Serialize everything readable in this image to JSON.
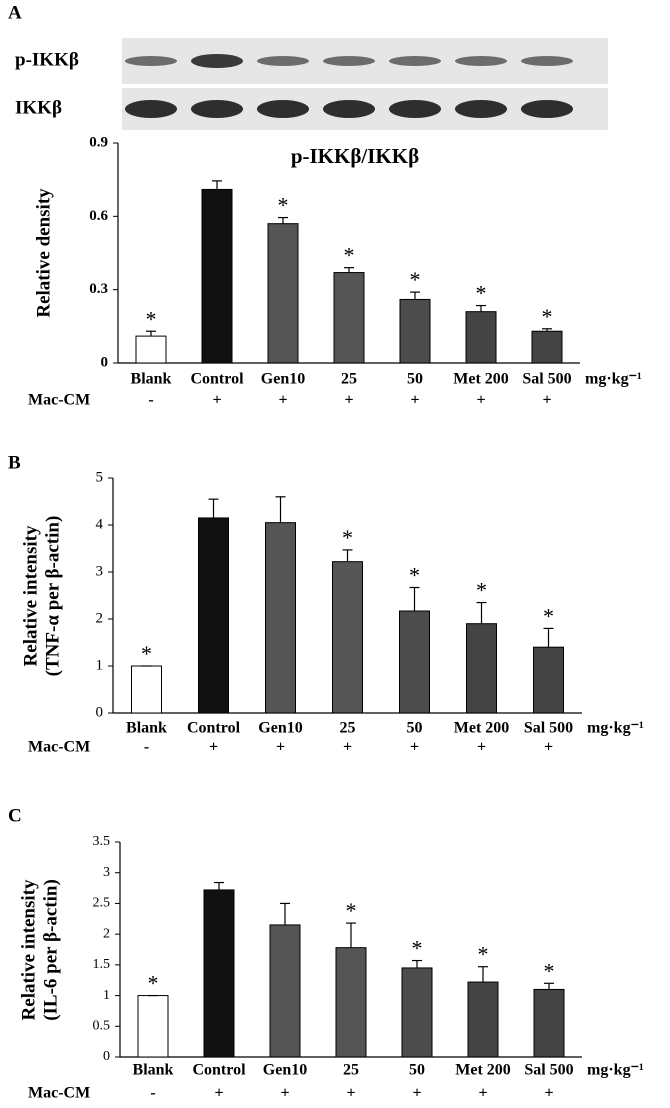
{
  "chart_data": [
    {
      "type": "bar",
      "panel": "A",
      "title": "p-IKKβ/IKKβ",
      "blots": [
        "p-IKKβ",
        "IKKβ"
      ],
      "ylabel": [
        "Relative density"
      ],
      "categories": [
        "Blank",
        "Control",
        "Gen10",
        "25",
        "50",
        "Met 200",
        "Sal 500"
      ],
      "unit": "mg·kg⁻¹",
      "values": [
        0.11,
        0.71,
        0.57,
        0.37,
        0.26,
        0.21,
        0.13
      ],
      "errors": [
        0.02,
        0.035,
        0.025,
        0.02,
        0.03,
        0.025,
        0.01
      ],
      "colors": [
        "#ffffff",
        "#111111",
        "#555555",
        "#555555",
        "#4c4c4c",
        "#444444",
        "#444444"
      ],
      "significance": [
        "*",
        null,
        "*",
        "*",
        "*",
        "*",
        "*"
      ],
      "treatment_label": "Mac-CM",
      "treatment": [
        "-",
        "+",
        "+",
        "+",
        "+",
        "+",
        "+"
      ],
      "ylim": [
        0,
        0.9
      ],
      "yticks": [
        0,
        0.3,
        0.6,
        0.9
      ]
    },
    {
      "type": "bar",
      "panel": "B",
      "ylabel": [
        "Relative intensity",
        "(TNF-α per β-actin)"
      ],
      "categories": [
        "Blank",
        "Control",
        "Gen10",
        "25",
        "50",
        "Met 200",
        "Sal 500"
      ],
      "unit": "mg·kg⁻¹",
      "values": [
        1.0,
        4.15,
        4.05,
        3.22,
        2.17,
        1.9,
        1.4
      ],
      "errors": [
        0,
        0.4,
        0.55,
        0.25,
        0.5,
        0.45,
        0.4
      ],
      "colors": [
        "#ffffff",
        "#111111",
        "#555555",
        "#555555",
        "#4c4c4c",
        "#444444",
        "#444444"
      ],
      "significance": [
        "*",
        null,
        null,
        "*",
        "*",
        "*",
        "*"
      ],
      "treatment_label": "Mac-CM",
      "treatment": [
        "-",
        "+",
        "+",
        "+",
        "+",
        "+",
        "+"
      ],
      "ylim": [
        0,
        5
      ],
      "yticks": [
        0,
        1,
        2,
        3,
        4,
        5
      ]
    },
    {
      "type": "bar",
      "panel": "C",
      "ylabel": [
        "Relative intensity",
        "(IL-6 per β-actin)"
      ],
      "categories": [
        "Blank",
        "Control",
        "Gen10",
        "25",
        "50",
        "Met 200",
        "Sal 500"
      ],
      "unit": "mg·kg⁻¹",
      "values": [
        1.0,
        2.72,
        2.15,
        1.78,
        1.45,
        1.22,
        1.1
      ],
      "errors": [
        0,
        0.12,
        0.35,
        0.4,
        0.12,
        0.25,
        0.1
      ],
      "colors": [
        "#ffffff",
        "#111111",
        "#555555",
        "#555555",
        "#4c4c4c",
        "#444444",
        "#444444"
      ],
      "significance": [
        "*",
        null,
        null,
        "*",
        "*",
        "*",
        "*"
      ],
      "treatment_label": "Mac-CM",
      "treatment": [
        "-",
        "+",
        "+",
        "+",
        "+",
        "+",
        "+"
      ],
      "ylim": [
        0,
        3.5
      ],
      "yticks": [
        0,
        0.5,
        1,
        1.5,
        2,
        2.5,
        3,
        3.5
      ]
    }
  ]
}
